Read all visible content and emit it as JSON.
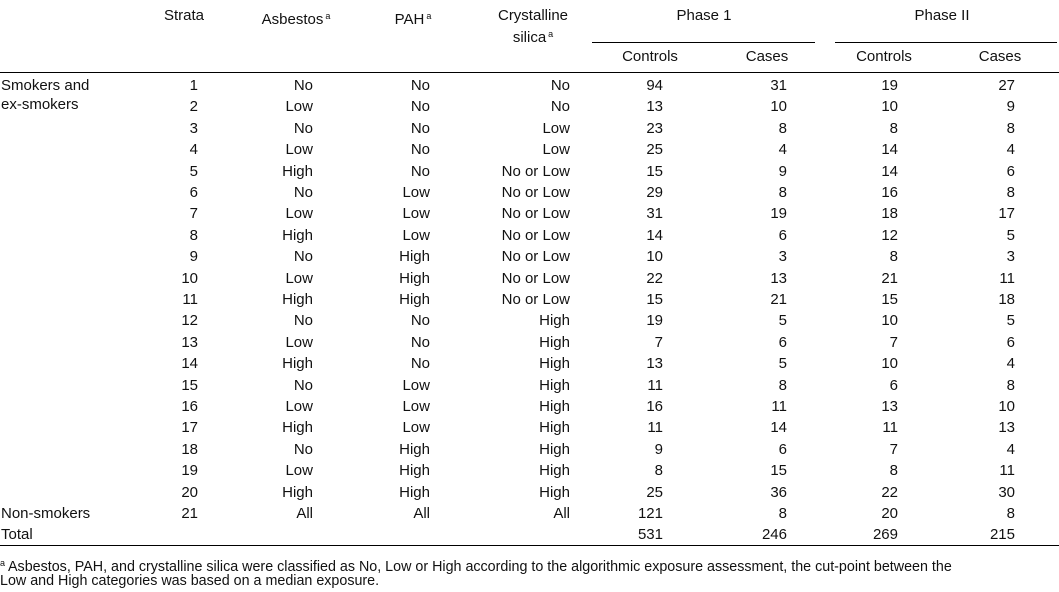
{
  "header": {
    "columns": [
      {
        "lines": [
          "Strata"
        ]
      },
      {
        "lines": [
          "Asbestos"
        ],
        "note": "a"
      },
      {
        "lines": [
          "PAH"
        ],
        "note": "a"
      },
      {
        "lines": [
          "Crystalline",
          "silica"
        ],
        "note": "a"
      }
    ],
    "phases": [
      {
        "title": "Phase 1",
        "subcolumns": [
          "Controls",
          "Cases"
        ]
      },
      {
        "title": "Phase II",
        "subcolumns": [
          "Controls",
          "Cases"
        ]
      }
    ]
  },
  "groups": [
    {
      "label": [
        "Smokers and",
        "ex-smokers"
      ],
      "rows": [
        [
          1,
          "No",
          "No",
          "No",
          94,
          31,
          19,
          27
        ],
        [
          2,
          "Low",
          "No",
          "No",
          13,
          10,
          10,
          9
        ],
        [
          3,
          "No",
          "No",
          "Low",
          23,
          8,
          8,
          8
        ],
        [
          4,
          "Low",
          "No",
          "Low",
          25,
          4,
          14,
          4
        ],
        [
          5,
          "High",
          "No",
          "No or Low",
          15,
          9,
          14,
          6
        ],
        [
          6,
          "No",
          "Low",
          "No or Low",
          29,
          8,
          16,
          8
        ],
        [
          7,
          "Low",
          "Low",
          "No or Low",
          31,
          19,
          18,
          17
        ],
        [
          8,
          "High",
          "Low",
          "No or Low",
          14,
          6,
          12,
          5
        ],
        [
          9,
          "No",
          "High",
          "No or Low",
          10,
          3,
          8,
          3
        ],
        [
          10,
          "Low",
          "High",
          "No or Low",
          22,
          13,
          21,
          11
        ],
        [
          11,
          "High",
          "High",
          "No or Low",
          15,
          21,
          15,
          18
        ],
        [
          12,
          "No",
          "No",
          "High",
          19,
          5,
          10,
          5
        ],
        [
          13,
          "Low",
          "No",
          "High",
          7,
          6,
          7,
          6
        ],
        [
          14,
          "High",
          "No",
          "High",
          13,
          5,
          10,
          4
        ],
        [
          15,
          "No",
          "Low",
          "High",
          11,
          8,
          6,
          8
        ],
        [
          16,
          "Low",
          "Low",
          "High",
          16,
          11,
          13,
          10
        ],
        [
          17,
          "High",
          "Low",
          "High",
          11,
          14,
          11,
          13
        ],
        [
          18,
          "No",
          "High",
          "High",
          9,
          6,
          7,
          4
        ],
        [
          19,
          "Low",
          "High",
          "High",
          8,
          15,
          8,
          11
        ],
        [
          20,
          "High",
          "High",
          "High",
          25,
          36,
          22,
          30
        ]
      ]
    },
    {
      "label": [
        "Non-smokers"
      ],
      "rows": [
        [
          21,
          "All",
          "All",
          "All",
          121,
          8,
          20,
          8
        ]
      ]
    }
  ],
  "total": {
    "label": "Total",
    "values": [
      531,
      246,
      269,
      215
    ]
  },
  "footnote": {
    "marker": "a",
    "lines": [
      "Asbestos, PAH, and crystalline silica were classified as No, Low or High according to the algorithmic exposure assessment, the cut-point between the",
      "Low and High categories was based on a median exposure."
    ]
  }
}
